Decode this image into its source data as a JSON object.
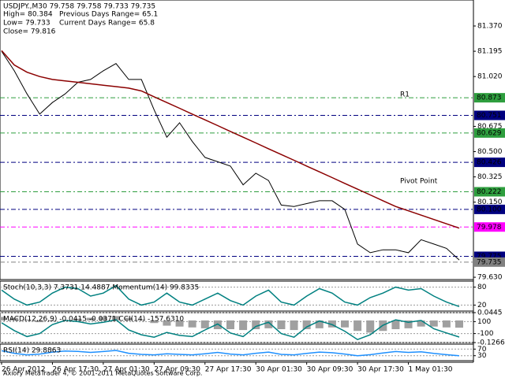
{
  "chart_data": [
    {
      "type": "line",
      "title": "USDJPY.,M30  79.758 79.758 79.733 79.735",
      "info": [
        "High= 80.384",
        "Previous Days Range= 65.1",
        "Low= 79.733",
        "Current Days Range= 65.8",
        "Close= 79.816"
      ],
      "annotations": [
        "R1",
        "Pivot Point"
      ],
      "categories": [
        "26 Apr 2012",
        null,
        null,
        null,
        "26 Apr 17:30",
        null,
        null,
        null,
        "27 Apr 01:30",
        null,
        null,
        null,
        "27 Apr 09:30",
        null,
        null,
        null,
        "27 Apr 17:30",
        null,
        null,
        null,
        "30 Apr 01:30",
        null,
        null,
        null,
        "30 Apr 09:30",
        null,
        null,
        null,
        "30 Apr 17:30",
        null,
        null,
        null,
        "1 May 01:30",
        null,
        null,
        null,
        null
      ],
      "series": [
        {
          "name": "Close",
          "color": "#000000",
          "values": [
            81.195,
            81.06,
            80.9,
            80.76,
            80.84,
            80.9,
            80.98,
            81.0,
            81.06,
            81.11,
            81.0,
            81.0,
            80.79,
            80.6,
            80.7,
            80.57,
            80.46,
            80.43,
            80.4,
            80.27,
            80.35,
            80.3,
            80.13,
            80.12,
            80.14,
            80.16,
            80.16,
            80.1,
            79.86,
            79.8,
            79.82,
            79.82,
            79.8,
            79.89,
            79.86,
            79.83,
            79.75
          ]
        },
        {
          "name": "MA",
          "color": "#8b0000",
          "values": [
            81.2,
            81.1,
            81.05,
            81.02,
            81.0,
            80.99,
            80.98,
            80.97,
            80.96,
            80.95,
            80.94,
            80.92,
            80.88,
            80.84,
            80.8,
            80.76,
            80.72,
            80.68,
            80.64,
            80.6,
            80.56,
            80.52,
            80.48,
            80.44,
            80.4,
            80.36,
            80.32,
            80.28,
            80.24,
            80.2,
            80.16,
            80.12,
            80.09,
            80.06,
            80.03,
            80.0,
            79.97
          ]
        }
      ],
      "ylim": [
        79.614,
        81.55
      ],
      "yticks": [
        {
          "value": 81.37,
          "label": "81.370"
        },
        81.195,
        {
          "value": 81.02,
          "label": "81.020"
        },
        {
          "value": 80.675,
          "label": "80.675"
        },
        {
          "value": 80.5,
          "label": "80.500"
        },
        {
          "value": 80.325,
          "label": "80.325"
        },
        {
          "value": 80.15,
          "label": "80.150"
        },
        {
          "value": 79.63,
          "label": "79.630"
        }
      ],
      "levels": [
        {
          "value": 80.873,
          "color": "#2e9e3e"
        },
        {
          "value": 80.751,
          "color": "#000080"
        },
        {
          "value": 80.629,
          "color": "#2e9e3e"
        },
        {
          "value": 80.426,
          "color": "#000080"
        },
        {
          "value": 80.222,
          "color": "#2e9e3e"
        },
        {
          "value": 80.1,
          "label": "80.100",
          "color": "#000080"
        },
        {
          "value": 79.978,
          "color": "#ff00ff"
        },
        {
          "value": 79.775,
          "color": "#000080"
        },
        {
          "value": 79.735,
          "color": "#808080"
        }
      ]
    },
    {
      "type": "line",
      "title": "Stoch(10,3,3) 7.3731 14.4887  Momentum(14) 99.8335",
      "series": [
        {
          "name": "Stoch",
          "color": "#008080",
          "values": [
            70,
            40,
            20,
            30,
            60,
            80,
            75,
            50,
            60,
            85,
            40,
            20,
            30,
            60,
            30,
            20,
            40,
            60,
            35,
            20,
            50,
            70,
            30,
            20,
            50,
            75,
            60,
            30,
            20,
            45,
            60,
            80,
            70,
            75,
            50,
            30,
            15
          ]
        }
      ],
      "ylim": [
        0,
        100
      ],
      "yticks": [
        80,
        20
      ]
    },
    {
      "type": "line",
      "title": "MACD(12,26,9) -0.0415 -0.0371  CCI(14) -157.6310",
      "series": [
        {
          "name": "MACD",
          "color": "#a0a0a0",
          "values": [
            0.02,
            0.015,
            0.005,
            -0.01,
            -0.005,
            0.0,
            0.01,
            0.015,
            0.02,
            0.025,
            0.015,
            0.005,
            -0.015,
            -0.03,
            -0.035,
            -0.04,
            -0.045,
            -0.05,
            -0.05,
            -0.055,
            -0.05,
            -0.045,
            -0.05,
            -0.055,
            -0.05,
            -0.045,
            -0.04,
            -0.04,
            -0.06,
            -0.07,
            -0.06,
            -0.05,
            -0.045,
            -0.035,
            -0.035,
            -0.04,
            -0.0415
          ]
        },
        {
          "name": "CCI",
          "color": "#008080",
          "axis": "y2",
          "values": [
            80,
            -50,
            -150,
            -100,
            50,
            120,
            100,
            60,
            90,
            130,
            -40,
            -120,
            -160,
            -80,
            -130,
            -150,
            -40,
            60,
            -90,
            -150,
            20,
            90,
            -100,
            -160,
            10,
            110,
            50,
            -60,
            -200,
            -120,
            40,
            130,
            90,
            120,
            -20,
            -90,
            -157.631
          ]
        }
      ],
      "ylim": [
        -0.1266,
        0.0445
      ],
      "yticks": [
        0.0445,
        -0.1266
      ],
      "y2lim": [
        -250,
        250
      ],
      "y2ticks": [
        100,
        -100
      ]
    },
    {
      "type": "line",
      "title": "RSI(14) 29.8863",
      "series": [
        {
          "name": "RSI",
          "color": "#1e90ff",
          "values": [
            60,
            45,
            35,
            40,
            52,
            58,
            56,
            50,
            55,
            62,
            45,
            38,
            35,
            42,
            38,
            35,
            42,
            50,
            40,
            35,
            45,
            52,
            38,
            35,
            44,
            52,
            48,
            40,
            30,
            36,
            46,
            55,
            50,
            54,
            44,
            36,
            29.8863
          ]
        }
      ],
      "ylim": [
        0,
        100
      ],
      "yticks": [
        70,
        30
      ]
    }
  ],
  "watermark": "Axiory MetaTrader 4, © 2001-2011 MetaQuotes Software Corp."
}
